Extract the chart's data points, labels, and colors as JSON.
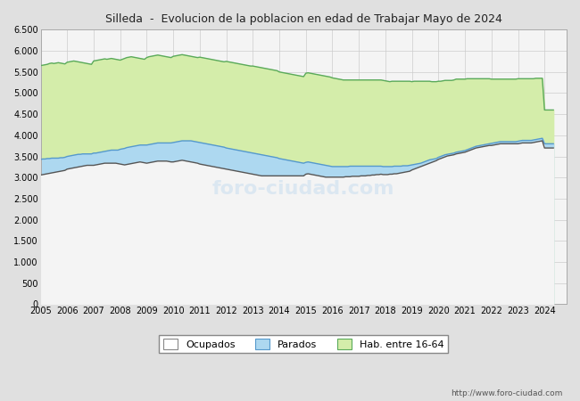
{
  "title": "Silleda  -  Evolucion de la poblacion en edad de Trabajar Mayo de 2024",
  "ylim": [
    0,
    6500
  ],
  "yticks": [
    0,
    500,
    1000,
    1500,
    2000,
    2500,
    3000,
    3500,
    4000,
    4500,
    5000,
    5500,
    6000,
    6500
  ],
  "ytick_labels": [
    "0",
    "500",
    "1.000",
    "1.500",
    "2.000",
    "2.500",
    "3.000",
    "3.500",
    "4.000",
    "4.500",
    "5.000",
    "5.500",
    "6.000",
    "6.500"
  ],
  "color_hab": "#d4edaa",
  "color_hab_line": "#5aaa5a",
  "color_parados": "#add8f0",
  "color_parados_line": "#5599cc",
  "color_ocupados_line": "#555555",
  "color_plot_bg": "#f4f4f4",
  "color_fig_bg": "#e0e0e0",
  "url": "http://www.foro-ciudad.com",
  "legend_labels": [
    "Ocupados",
    "Parados",
    "Hab. entre 16-64"
  ],
  "hab_data": [
    5650,
    5660,
    5670,
    5680,
    5700,
    5710,
    5700,
    5710,
    5720,
    5710,
    5700,
    5690,
    5730,
    5740,
    5750,
    5760,
    5750,
    5740,
    5730,
    5720,
    5710,
    5700,
    5690,
    5680,
    5760,
    5770,
    5780,
    5790,
    5800,
    5810,
    5800,
    5810,
    5820,
    5810,
    5800,
    5790,
    5780,
    5800,
    5820,
    5840,
    5850,
    5860,
    5850,
    5840,
    5830,
    5820,
    5810,
    5800,
    5840,
    5860,
    5870,
    5880,
    5890,
    5900,
    5890,
    5880,
    5870,
    5860,
    5850,
    5840,
    5870,
    5880,
    5890,
    5900,
    5910,
    5900,
    5890,
    5880,
    5870,
    5860,
    5850,
    5840,
    5850,
    5840,
    5830,
    5820,
    5810,
    5800,
    5790,
    5780,
    5770,
    5760,
    5750,
    5740,
    5750,
    5740,
    5730,
    5720,
    5710,
    5700,
    5690,
    5680,
    5670,
    5660,
    5650,
    5640,
    5640,
    5630,
    5620,
    5610,
    5600,
    5590,
    5580,
    5570,
    5560,
    5550,
    5540,
    5530,
    5500,
    5490,
    5480,
    5470,
    5460,
    5450,
    5440,
    5430,
    5420,
    5410,
    5400,
    5390,
    5470,
    5480,
    5470,
    5460,
    5450,
    5440,
    5430,
    5420,
    5410,
    5400,
    5390,
    5380,
    5360,
    5350,
    5340,
    5330,
    5320,
    5310,
    5310,
    5310,
    5310,
    5310,
    5310,
    5310,
    5310,
    5310,
    5310,
    5310,
    5310,
    5310,
    5310,
    5310,
    5310,
    5310,
    5310,
    5300,
    5290,
    5280,
    5270,
    5280,
    5280,
    5280,
    5280,
    5280,
    5280,
    5280,
    5280,
    5280,
    5270,
    5280,
    5280,
    5280,
    5280,
    5280,
    5280,
    5280,
    5280,
    5270,
    5270,
    5270,
    5280,
    5280,
    5290,
    5300,
    5300,
    5300,
    5300,
    5310,
    5330,
    5330,
    5330,
    5330,
    5330,
    5340,
    5340,
    5340,
    5340,
    5340,
    5340,
    5340,
    5340,
    5340,
    5340,
    5340,
    5330,
    5330,
    5330,
    5330,
    5330,
    5330,
    5330,
    5330,
    5330,
    5330,
    5330,
    5330,
    5340,
    5340,
    5340,
    5340,
    5340,
    5340,
    5340,
    5340,
    5350,
    5350,
    5350,
    5350,
    4600
  ],
  "parados_data": [
    3430,
    3440,
    3440,
    3450,
    3450,
    3460,
    3460,
    3460,
    3460,
    3470,
    3470,
    3480,
    3500,
    3510,
    3520,
    3530,
    3540,
    3550,
    3550,
    3560,
    3560,
    3560,
    3560,
    3560,
    3580,
    3580,
    3590,
    3600,
    3610,
    3620,
    3630,
    3640,
    3650,
    3650,
    3650,
    3650,
    3670,
    3680,
    3690,
    3710,
    3720,
    3730,
    3740,
    3750,
    3760,
    3770,
    3770,
    3770,
    3770,
    3780,
    3790,
    3800,
    3810,
    3820,
    3820,
    3820,
    3820,
    3820,
    3820,
    3820,
    3830,
    3840,
    3850,
    3860,
    3870,
    3870,
    3870,
    3870,
    3870,
    3860,
    3850,
    3840,
    3830,
    3820,
    3810,
    3800,
    3790,
    3780,
    3770,
    3760,
    3750,
    3740,
    3730,
    3720,
    3700,
    3690,
    3680,
    3670,
    3660,
    3650,
    3640,
    3630,
    3620,
    3610,
    3600,
    3590,
    3580,
    3570,
    3560,
    3550,
    3540,
    3530,
    3520,
    3510,
    3500,
    3490,
    3480,
    3470,
    3450,
    3440,
    3430,
    3420,
    3410,
    3400,
    3390,
    3380,
    3370,
    3360,
    3350,
    3340,
    3360,
    3370,
    3360,
    3350,
    3340,
    3330,
    3320,
    3310,
    3300,
    3290,
    3280,
    3270,
    3260,
    3260,
    3260,
    3260,
    3260,
    3260,
    3260,
    3260,
    3270,
    3270,
    3270,
    3270,
    3270,
    3270,
    3270,
    3270,
    3270,
    3270,
    3270,
    3270,
    3270,
    3270,
    3270,
    3260,
    3260,
    3260,
    3260,
    3260,
    3270,
    3270,
    3270,
    3270,
    3280,
    3280,
    3280,
    3290,
    3300,
    3310,
    3320,
    3330,
    3340,
    3360,
    3380,
    3400,
    3420,
    3430,
    3440,
    3450,
    3480,
    3500,
    3520,
    3540,
    3550,
    3560,
    3570,
    3580,
    3600,
    3610,
    3620,
    3630,
    3640,
    3660,
    3680,
    3700,
    3720,
    3740,
    3750,
    3760,
    3770,
    3780,
    3790,
    3800,
    3810,
    3820,
    3830,
    3840,
    3850,
    3850,
    3850,
    3850,
    3850,
    3850,
    3850,
    3850,
    3860,
    3870,
    3880,
    3880,
    3880,
    3880,
    3880,
    3890,
    3900,
    3910,
    3920,
    3930,
    3800
  ],
  "ocupados_data": [
    3060,
    3070,
    3080,
    3090,
    3100,
    3110,
    3120,
    3130,
    3140,
    3150,
    3160,
    3170,
    3200,
    3210,
    3220,
    3230,
    3240,
    3250,
    3260,
    3270,
    3280,
    3290,
    3290,
    3290,
    3290,
    3300,
    3310,
    3320,
    3330,
    3340,
    3340,
    3340,
    3340,
    3340,
    3340,
    3330,
    3320,
    3310,
    3300,
    3310,
    3320,
    3330,
    3340,
    3350,
    3360,
    3370,
    3360,
    3350,
    3340,
    3350,
    3360,
    3370,
    3380,
    3390,
    3390,
    3390,
    3390,
    3390,
    3380,
    3370,
    3370,
    3380,
    3390,
    3400,
    3410,
    3400,
    3390,
    3380,
    3370,
    3360,
    3350,
    3340,
    3320,
    3310,
    3300,
    3290,
    3280,
    3270,
    3260,
    3250,
    3240,
    3230,
    3220,
    3210,
    3200,
    3190,
    3180,
    3170,
    3160,
    3150,
    3140,
    3130,
    3120,
    3110,
    3100,
    3090,
    3080,
    3070,
    3060,
    3050,
    3040,
    3040,
    3040,
    3040,
    3040,
    3040,
    3040,
    3040,
    3040,
    3040,
    3040,
    3040,
    3040,
    3040,
    3040,
    3040,
    3040,
    3040,
    3040,
    3040,
    3080,
    3090,
    3080,
    3070,
    3060,
    3050,
    3040,
    3030,
    3020,
    3010,
    3010,
    3010,
    3010,
    3010,
    3010,
    3010,
    3010,
    3010,
    3020,
    3020,
    3020,
    3030,
    3030,
    3030,
    3030,
    3040,
    3040,
    3040,
    3050,
    3050,
    3060,
    3060,
    3070,
    3070,
    3080,
    3070,
    3070,
    3070,
    3080,
    3080,
    3090,
    3090,
    3100,
    3110,
    3120,
    3130,
    3140,
    3150,
    3180,
    3200,
    3220,
    3240,
    3260,
    3280,
    3300,
    3320,
    3340,
    3360,
    3380,
    3400,
    3430,
    3450,
    3470,
    3490,
    3510,
    3520,
    3530,
    3540,
    3560,
    3570,
    3580,
    3590,
    3600,
    3620,
    3640,
    3660,
    3680,
    3700,
    3710,
    3720,
    3730,
    3740,
    3750,
    3760,
    3760,
    3770,
    3780,
    3790,
    3800,
    3800,
    3800,
    3800,
    3800,
    3800,
    3800,
    3800,
    3800,
    3810,
    3820,
    3820,
    3820,
    3820,
    3820,
    3830,
    3840,
    3850,
    3860,
    3870,
    3700
  ]
}
